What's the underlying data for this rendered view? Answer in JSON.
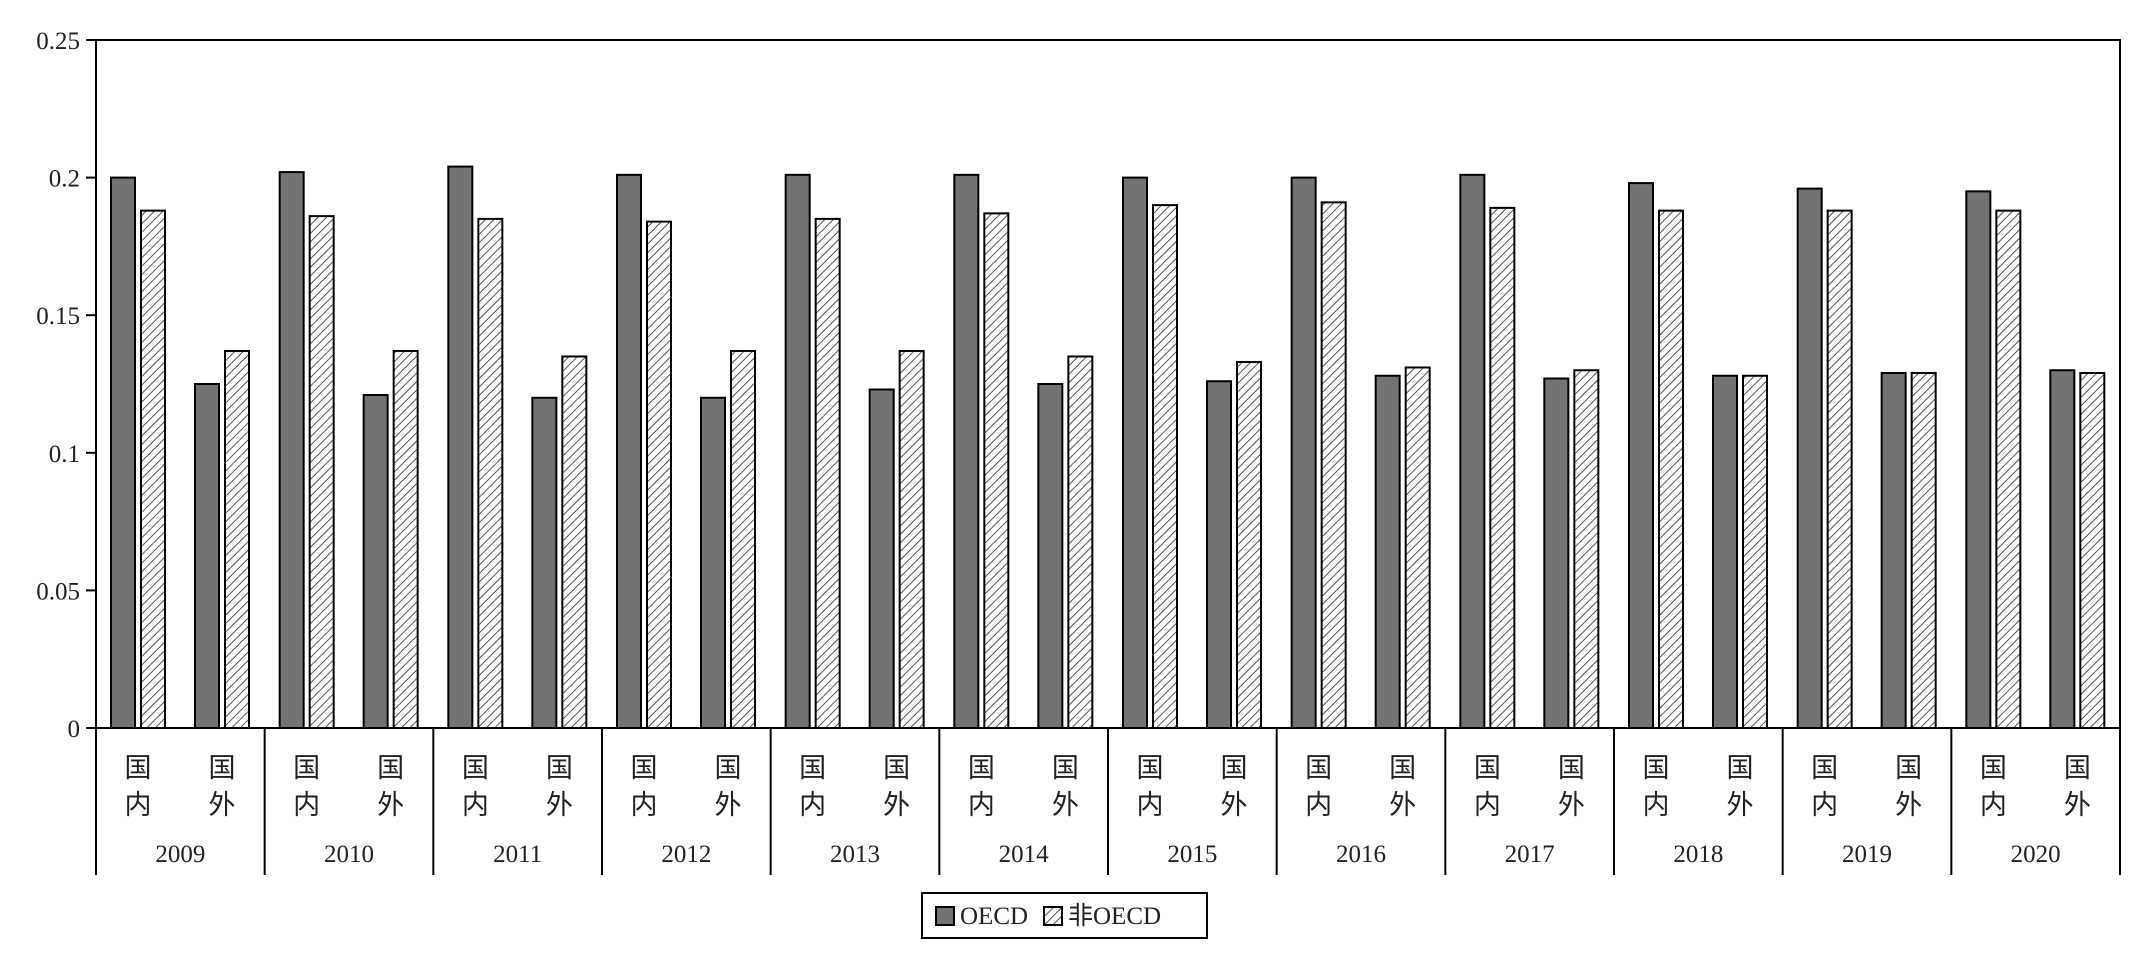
{
  "chart_data": {
    "type": "bar",
    "title": "",
    "xlabel": "",
    "ylabel": "",
    "ylim": [
      0,
      0.25
    ],
    "yticks": [
      "0",
      "0.05",
      "0.1",
      "0.15",
      "0.2",
      "0.25"
    ],
    "grid": false,
    "legend_position": "bottom-center",
    "years": [
      "2009",
      "2010",
      "2011",
      "2012",
      "2013",
      "2014",
      "2015",
      "2016",
      "2017",
      "2018",
      "2019",
      "2020"
    ],
    "subcategories": [
      {
        "label_top": "国",
        "label_bottom": "内"
      },
      {
        "label_top": "国",
        "label_bottom": "外"
      }
    ],
    "series": [
      {
        "name": "OECD",
        "fill": "solid",
        "color": "#737373",
        "values": {
          "国内": [
            0.2,
            0.202,
            0.204,
            0.201,
            0.201,
            0.201,
            0.2,
            0.2,
            0.201,
            0.198,
            0.196,
            0.195
          ],
          "国外": [
            0.125,
            0.121,
            0.12,
            0.12,
            0.123,
            0.125,
            0.126,
            0.128,
            0.127,
            0.128,
            0.129,
            0.13
          ]
        }
      },
      {
        "name": "非OECD",
        "fill": "hatched",
        "color": "#555555",
        "values": {
          "国内": [
            0.188,
            0.186,
            0.185,
            0.184,
            0.185,
            0.187,
            0.19,
            0.191,
            0.189,
            0.188,
            0.188,
            0.188
          ],
          "国外": [
            0.137,
            0.137,
            0.135,
            0.137,
            0.137,
            0.135,
            0.133,
            0.131,
            0.13,
            0.128,
            0.129,
            0.129
          ]
        }
      }
    ]
  }
}
